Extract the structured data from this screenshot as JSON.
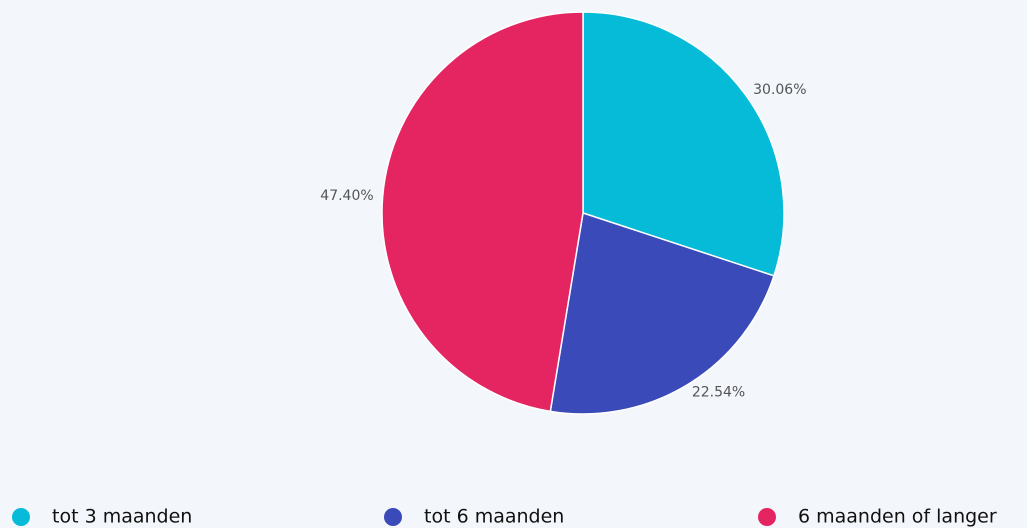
{
  "chart_data": {
    "type": "pie",
    "categories": [
      "tot 3 maanden",
      "tot 6 maanden",
      "6 maanden of langer"
    ],
    "values": [
      30.06,
      22.54,
      47.4
    ],
    "value_labels": [
      "30.06%",
      "22.54%",
      "47.40%"
    ],
    "colors": [
      "#06bbd8",
      "#3a4bb9",
      "#e42562"
    ]
  }
}
